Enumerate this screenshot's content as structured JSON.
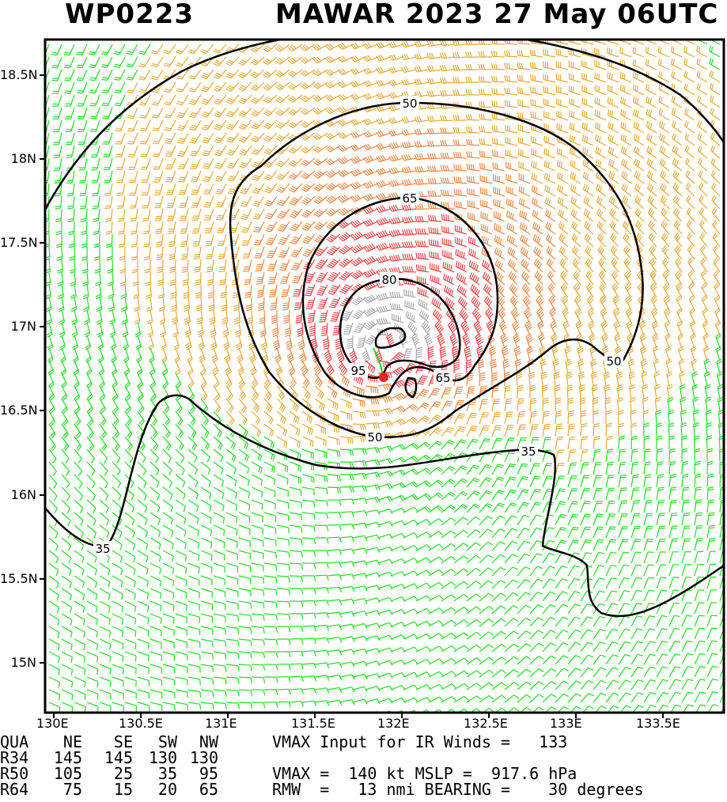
{
  "header": {
    "storm_id": "WP0223",
    "title": "MAWAR 2023 27 May 06UTC"
  },
  "map": {
    "lat_labels": [
      "18.5N",
      "18N",
      "17.5N",
      "17N",
      "16.5N",
      "16N",
      "15.5N",
      "15N"
    ],
    "lon_labels": [
      "130E",
      "130.5E",
      "131E",
      "131.5E",
      "132E",
      "132.5E",
      "133E",
      "133.5E"
    ],
    "contour_labels": [
      "50",
      "65",
      "80",
      "95",
      "65",
      "50",
      "35",
      "50",
      "35"
    ],
    "barb_colors": {
      "lt34": "#22dd22",
      "34to50": "#e8a838",
      "50to64": "#ee8844",
      "64to100": "#ee4444",
      "ge100": "#aaaaaa"
    },
    "center_color": "#ee2222",
    "storm_center": {
      "lat": 16.7,
      "lon": 131.92
    }
  },
  "wind_radii": {
    "header": [
      "QUA",
      "NE",
      "SE",
      "SW",
      "NW"
    ],
    "rows": [
      [
        "R34",
        "145",
        "145",
        "130",
        "130"
      ],
      [
        "R50",
        "105",
        "25",
        "35",
        "95"
      ],
      [
        "R64",
        "75",
        "15",
        "20",
        "65"
      ]
    ]
  },
  "stats": {
    "vmax_input_line": "VMAX Input for IR Winds =   133",
    "vmax_line": "VMAX =  140 kt MSLP =  917.6 hPa",
    "rmw_line": "RMW  =   13 nmi BEARING =    30 degrees"
  }
}
